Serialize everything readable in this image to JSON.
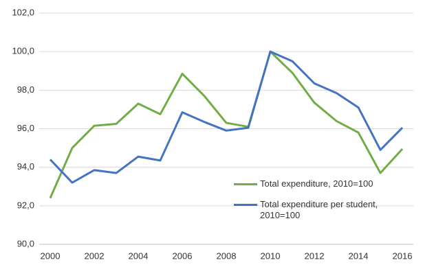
{
  "chart_data": {
    "type": "line",
    "categories": [
      "2000",
      null,
      "2002",
      null,
      "2004",
      null,
      "2006",
      null,
      "2008",
      null,
      "2010",
      null,
      "2012",
      null,
      "2014",
      null,
      "2016"
    ],
    "series": [
      {
        "name": "Total expenditure, 2010=100",
        "color": "#70ad47",
        "values": [
          92.4,
          95.0,
          96.15,
          96.25,
          97.3,
          96.75,
          98.85,
          97.7,
          96.3,
          96.1,
          100.0,
          98.9,
          97.35,
          96.4,
          95.8,
          93.7,
          94.95
        ]
      },
      {
        "name": "Total expenditure per student, 2010=100",
        "color": "#4472c4",
        "values": [
          94.4,
          93.2,
          93.85,
          93.7,
          94.55,
          94.35,
          96.85,
          96.35,
          95.9,
          96.05,
          100.0,
          99.5,
          98.35,
          97.85,
          97.1,
          94.9,
          96.05
        ]
      }
    ],
    "ylim": [
      90,
      102
    ],
    "yticks": [
      {
        "value": 90,
        "label": "90,0"
      },
      {
        "value": 92,
        "label": "92,0"
      },
      {
        "value": 94,
        "label": "94,0"
      },
      {
        "value": 96,
        "label": "96,0"
      },
      {
        "value": 98,
        "label": "98,0"
      },
      {
        "value": 100,
        "label": "100,0"
      },
      {
        "value": 102,
        "label": "102,0"
      }
    ],
    "grid": true,
    "legend": "lower right"
  }
}
